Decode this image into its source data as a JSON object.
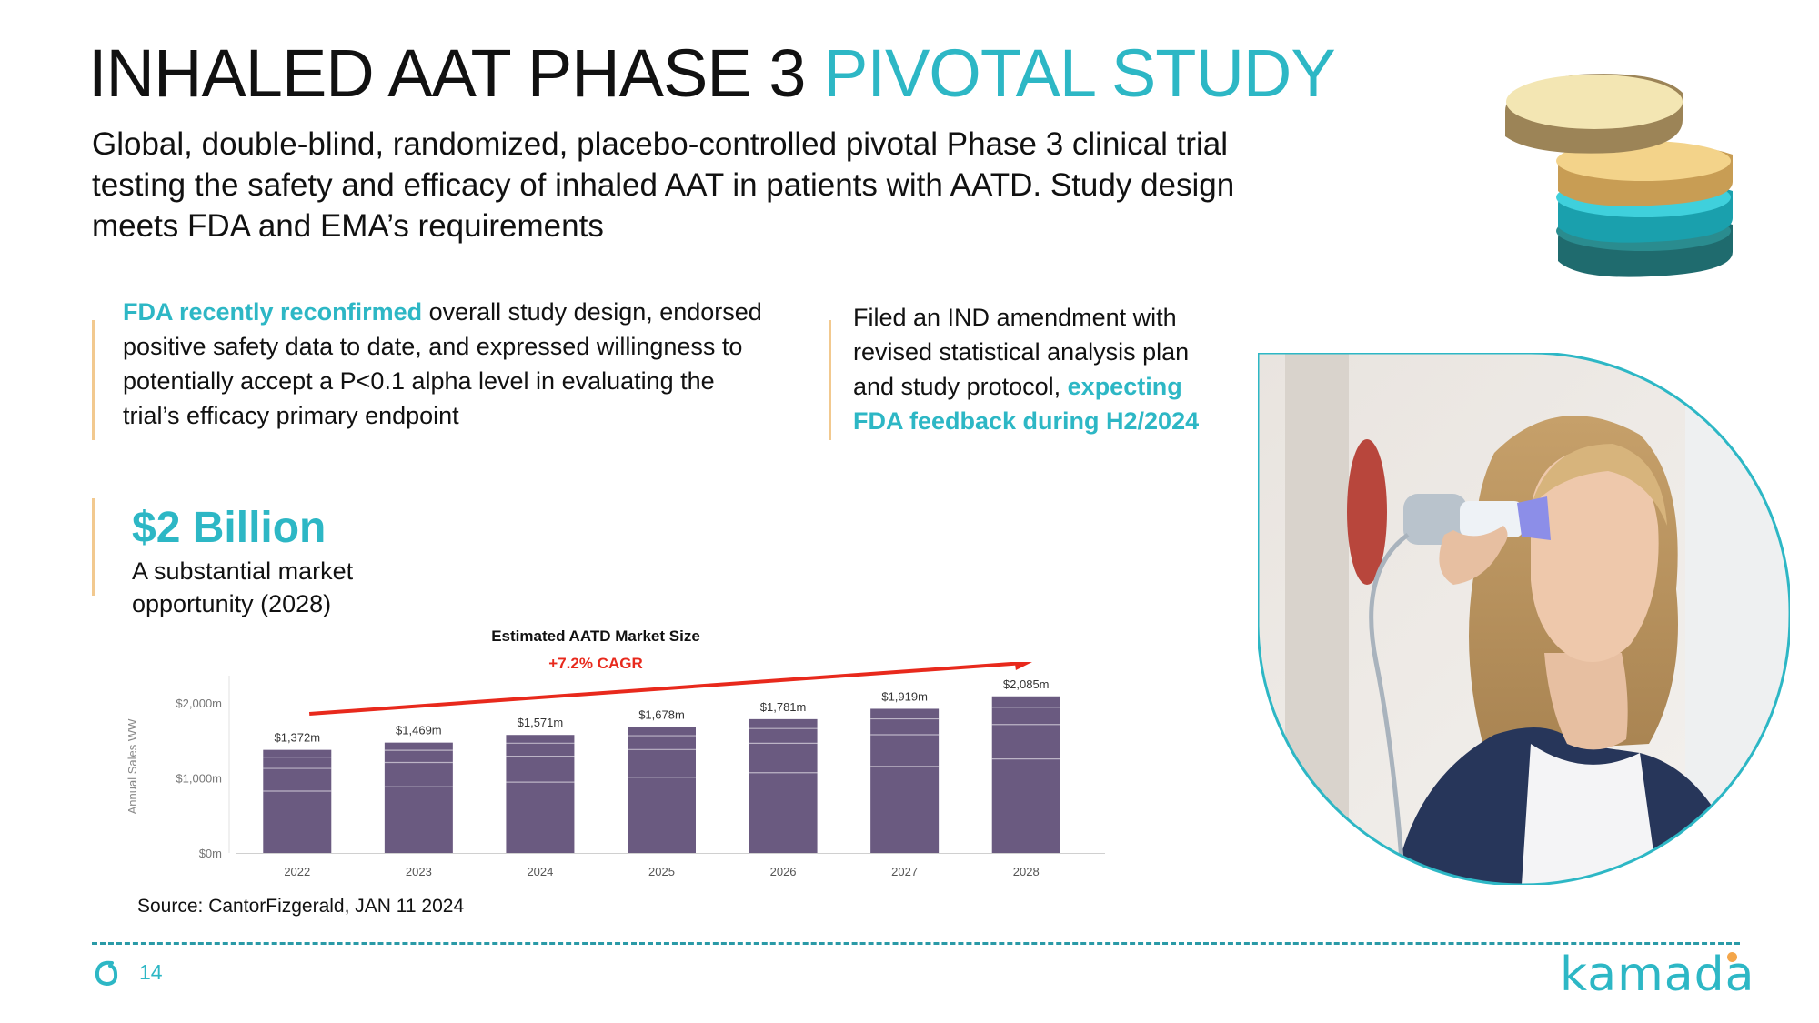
{
  "title": {
    "main": "INHALED AAT PHASE 3 ",
    "accent": "PIVOTAL STUDY"
  },
  "subtitle": "Global, double-blind, randomized, placebo-controlled pivotal Phase 3 clinical trial testing the safety and efficacy of inhaled AAT in patients with AATD. Study design meets FDA and EMA’s requirements",
  "callout_left": {
    "highlight": "FDA recently reconfirmed",
    "text": " overall study design, endorsed positive safety data to date, and expressed willingness to potentially accept a P<0.1 alpha level in evaluating the trial’s efficacy primary endpoint"
  },
  "callout_right": {
    "text": "Filed an IND amendment with revised statistical analysis plan and study protocol, ",
    "highlight": "expecting FDA feedback during H2/2024"
  },
  "market": {
    "headline": "$2 Billion",
    "subtext": "A substantial  market opportunity (2028)"
  },
  "chart_data": {
    "type": "bar",
    "title": "Estimated AATD Market Size",
    "annotation": "+7.2% CAGR",
    "categories": [
      "2022",
      "2023",
      "2024",
      "2025",
      "2026",
      "2027",
      "2028"
    ],
    "values": [
      1372,
      1469,
      1571,
      1678,
      1781,
      1919,
      2085
    ],
    "data_labels": [
      "$1,372m",
      "$1,469m",
      "$1,571m",
      "$1,678m",
      "$1,781m",
      "$1,919m",
      "$2,085m"
    ],
    "ylabel": "Annual Sales WW",
    "yticks": [
      "$0m",
      "$1,000m",
      "$2,000m"
    ],
    "ytick_values": [
      0,
      1000,
      2000
    ],
    "ylim": [
      0,
      2300
    ],
    "bar_color": "#6a5a80",
    "arrow_color": "#e8291c"
  },
  "source": "Source: CantorFizgerald, JAN 11 2024",
  "page_number": "14",
  "logo": "kamada",
  "colors": {
    "accent": "#2db7c5",
    "bar_accent": "#f2c98f",
    "logo_dot": "#f4a64a"
  },
  "icons": {
    "layers": "stacked-layers-icon",
    "page": "brand-swirl-icon"
  }
}
